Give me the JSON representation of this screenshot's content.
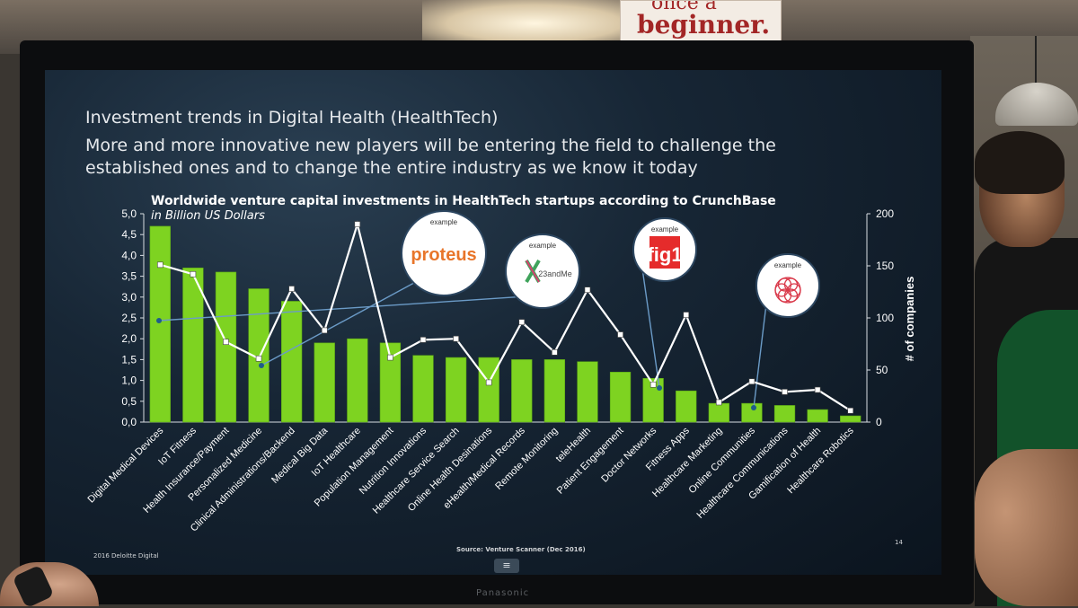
{
  "environment": {
    "poster_line1": "once a",
    "poster_line2": "beginner.",
    "monitor_brand": "Panasonic"
  },
  "slide": {
    "heading": "Investment trends in Digital Health (HealthTech)",
    "subheading": "More and more innovative new players will be entering the field to challenge the\nestablished ones and to change the entire industry as we know it today",
    "copyright": "2016 Deloitte Digital",
    "source": "Source: Venture Scanner (Dec 2016)",
    "page_number": "14",
    "menu_icon": "≡"
  },
  "colors": {
    "bar": "#7ed321",
    "bar_stroke": "#5aa616",
    "line": "#ffffff",
    "marker_fill": "#ffffff",
    "callout_line": "#6b9bc7",
    "callout_dot": "#1f5c8a"
  },
  "callouts": [
    {
      "category": "Personalized Medicine",
      "label": "example",
      "logo_text": "proteus",
      "logo_color": "#e8752a",
      "logo_icon": "proteus-logo-icon"
    },
    {
      "category": "Digital Medical Devices",
      "label": "example",
      "logo_text": "23andMe",
      "logo_color": "#4a4a4a",
      "logo_icon": "23andme-logo-icon"
    },
    {
      "category": "Doctor Networks",
      "label": "example",
      "logo_text": "fig1",
      "logo_color": "#e52b2b",
      "logo_icon": "figure1-logo-icon"
    },
    {
      "category": "Online Communities",
      "label": "example",
      "logo_text": "",
      "logo_color": "#d9394a",
      "logo_icon": "flower-logo-icon"
    }
  ],
  "chart_data": {
    "type": "bar",
    "title": "Worldwide venture capital investments in HealthTech startups according to CrunchBase",
    "subtitle": "in Billion US Dollars",
    "categories": [
      "Digital Medical Devices",
      "IoT Fitness",
      "Health Insurance/Payment",
      "Personalized Medicine",
      "Clinical Administrations/Backend",
      "Medical Big Data",
      "IoT Healthcare",
      "Population Management",
      "Nutrition Innovations",
      "Healthcare Service Search",
      "Online Health Desinations",
      "eHealth/Medical Records",
      "Remote Monitoring",
      "teleHealth",
      "Patient Engagement",
      "Doctor Networks",
      "Fitness Apps",
      "Healthcare Marketing",
      "Online Communities",
      "Healthcare Communications",
      "Gamification of Health",
      "Healthcare Robotics"
    ],
    "series": [
      {
        "axis": "left",
        "kind": "bar",
        "values": [
          4.7,
          3.7,
          3.6,
          3.2,
          2.9,
          1.9,
          2.0,
          1.9,
          1.6,
          1.55,
          1.55,
          1.5,
          1.5,
          1.45,
          1.2,
          1.05,
          0.75,
          0.45,
          0.45,
          0.4,
          0.3,
          0.15
        ]
      },
      {
        "axis": "right",
        "kind": "line",
        "values": [
          151,
          142,
          77,
          61,
          128,
          88,
          190,
          62,
          79,
          80,
          38,
          96,
          67,
          127,
          84,
          36,
          103,
          19,
          39,
          29,
          31,
          11
        ]
      }
    ],
    "left_axis": {
      "ylim": [
        0,
        5
      ],
      "ticks": [
        "0,0",
        "0,5",
        "1,0",
        "1,5",
        "2,0",
        "2,5",
        "3,0",
        "3,5",
        "4,0",
        "4,5",
        "5,0"
      ]
    },
    "right_axis": {
      "ylim": [
        0,
        200
      ],
      "ticks": [
        "0",
        "50",
        "100",
        "150",
        "200"
      ],
      "label": "# of companies"
    },
    "grid": false,
    "legend": "none"
  }
}
